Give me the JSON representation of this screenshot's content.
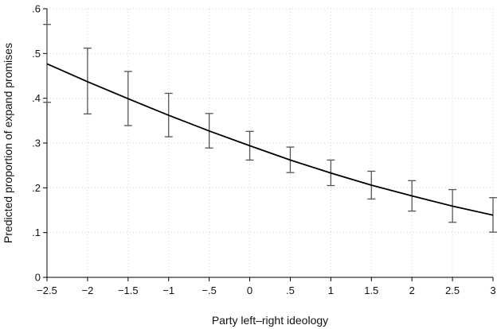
{
  "chart_data": {
    "type": "line",
    "xlabel": "Party left–right ideology",
    "ylabel": "Predicted proportion of expand promises",
    "xlim": [
      -2.5,
      3
    ],
    "ylim": [
      0,
      0.6
    ],
    "x_ticks": [
      -2.5,
      -2,
      -1.5,
      -1,
      -0.5,
      0,
      0.5,
      1,
      1.5,
      2,
      2.5,
      3
    ],
    "x_tick_labels": [
      "−2.5",
      "−2",
      "−1.5",
      "−1",
      "−.5",
      "0",
      ".5",
      "1",
      "1.5",
      "2",
      "2.5",
      "3"
    ],
    "y_ticks": [
      0,
      0.1,
      0.2,
      0.3,
      0.4,
      0.5,
      0.6
    ],
    "y_tick_labels": [
      "0",
      ".1",
      ".2",
      ".3",
      ".4",
      ".5",
      ".6"
    ],
    "grid": true,
    "series": [
      {
        "x": [
          -2.5,
          -2,
          -1.5,
          -1,
          -0.5,
          0,
          0.5,
          1,
          1.5,
          2,
          2.5,
          3
        ],
        "y": [
          0.477,
          0.437,
          0.399,
          0.362,
          0.327,
          0.294,
          0.262,
          0.233,
          0.206,
          0.182,
          0.159,
          0.139
        ],
        "ci_low": [
          0.391,
          0.365,
          0.339,
          0.314,
          0.289,
          0.262,
          0.234,
          0.205,
          0.175,
          0.148,
          0.123,
          0.101
        ],
        "ci_high": [
          0.565,
          0.512,
          0.46,
          0.411,
          0.366,
          0.326,
          0.291,
          0.262,
          0.237,
          0.216,
          0.196,
          0.178
        ]
      }
    ]
  }
}
